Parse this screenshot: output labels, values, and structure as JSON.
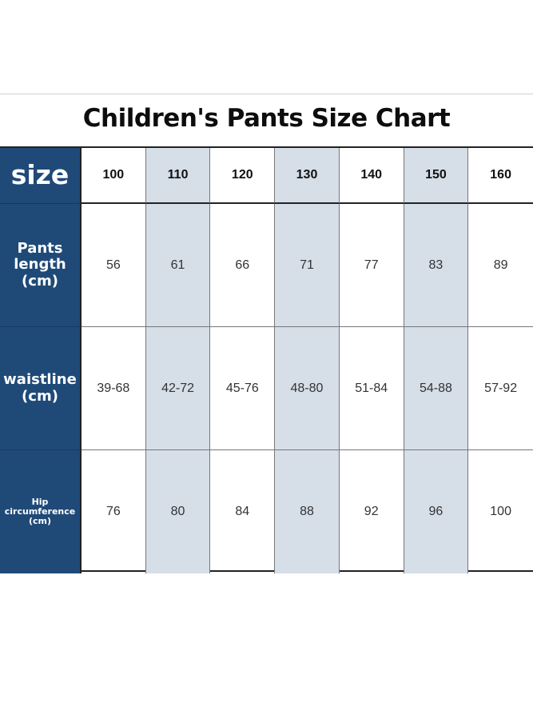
{
  "title": "Children's Pants Size Chart",
  "table": {
    "row_headers": [
      "size",
      "Pants\nlength\n(cm)",
      "waistline\n(cm)",
      "Hip\ncircumference\n(cm)"
    ],
    "sizes": [
      "100",
      "110",
      "120",
      "130",
      "140",
      "150",
      "160"
    ],
    "rows": [
      [
        "56",
        "61",
        "66",
        "71",
        "77",
        "83",
        "89"
      ],
      [
        "39-68",
        "42-72",
        "45-76",
        "48-80",
        "51-84",
        "54-88",
        "57-92"
      ],
      [
        "76",
        "80",
        "84",
        "88",
        "92",
        "96",
        "100"
      ]
    ]
  },
  "colors": {
    "header_blue": "#1f4a78",
    "alternate_column": "#d6dee8"
  }
}
